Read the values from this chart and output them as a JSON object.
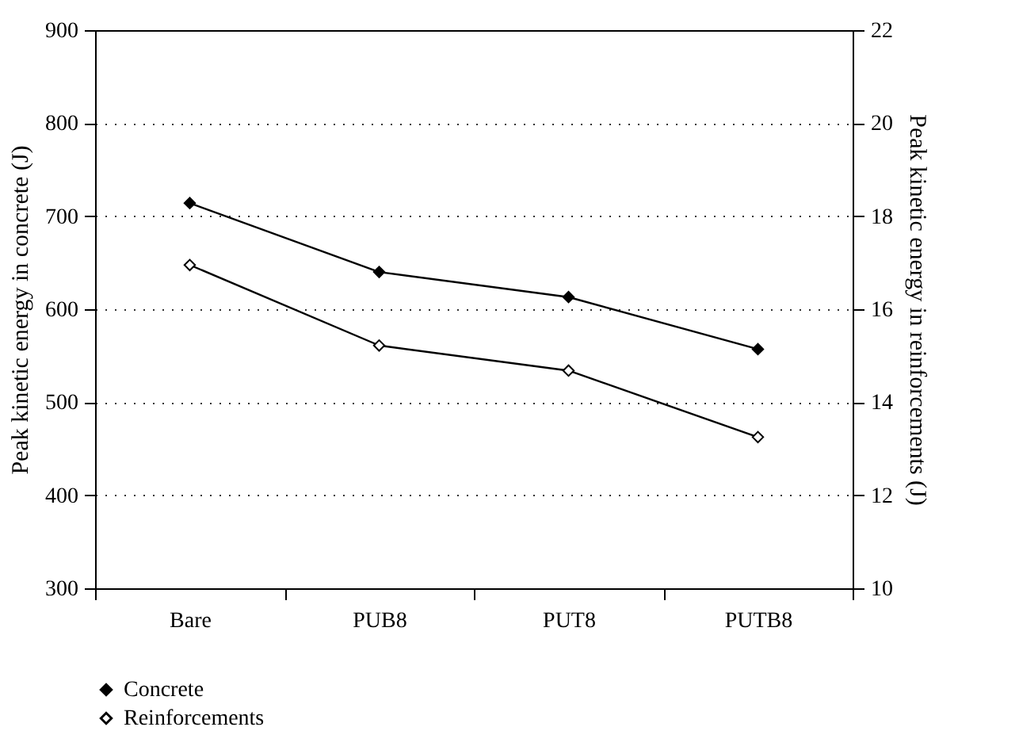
{
  "chart_data": {
    "type": "line",
    "xlabel": null,
    "categories": [
      "Bare",
      "PUB8",
      "PUT8",
      "PUTB8"
    ],
    "ylabel": "Peak kinetic energy in concrete (J)",
    "y2label": "Peak kinetic energy in reinforcements (J)",
    "ylim": [
      300,
      900
    ],
    "yticks": [
      300,
      400,
      500,
      600,
      700,
      800,
      900
    ],
    "y2lim": [
      10,
      22
    ],
    "y2ticks": [
      10,
      12,
      14,
      16,
      18,
      20,
      22
    ],
    "series": [
      {
        "name": "Concrete",
        "color": "#000000",
        "values": [
          714,
          640,
          613,
          557
        ]
      },
      {
        "name": "Reinforcements",
        "color": "#000000",
        "axis": "y2",
        "values": [
          16.95,
          15.22,
          14.68,
          13.25
        ]
      }
    ],
    "marker": "diamond",
    "line_style": "solid",
    "grid": "y",
    "legend": "bottom left"
  }
}
